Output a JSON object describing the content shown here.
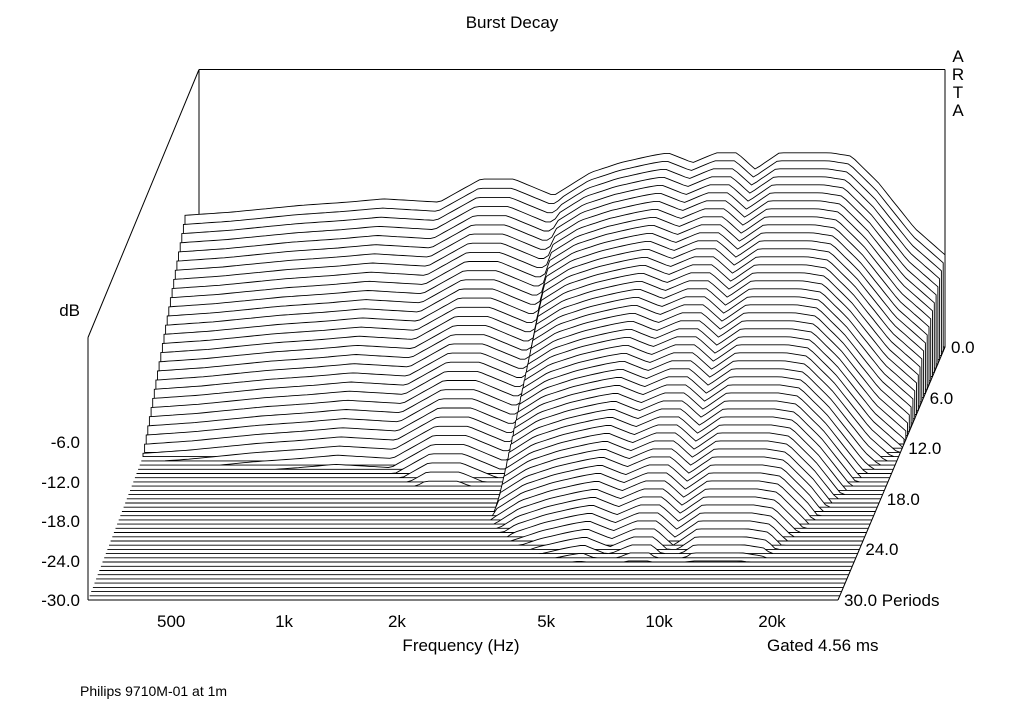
{
  "chart_data": {
    "type": "waterfall",
    "title": "Burst Decay",
    "xlabel": "Frequency (Hz)",
    "ylabel": "dB",
    "zlabel": "Periods",
    "gated_label": "Gated 4.56 ms",
    "footnote": "Philips 9710M-01 at 1m",
    "watermark": "ARTA",
    "x_scale": "log",
    "xlim": [
      300,
      30000
    ],
    "ylim": [
      -30,
      0
    ],
    "zlim": [
      0,
      30
    ],
    "x_ticks": [
      {
        "value": 500,
        "label": "500"
      },
      {
        "value": 1000,
        "label": "1k"
      },
      {
        "value": 2000,
        "label": "2k"
      },
      {
        "value": 5000,
        "label": "5k"
      },
      {
        "value": 10000,
        "label": "10k"
      },
      {
        "value": 20000,
        "label": "20k"
      }
    ],
    "y_ticks": [
      {
        "value": -6,
        "label": "-6.0"
      },
      {
        "value": -12,
        "label": "-12.0"
      },
      {
        "value": -18,
        "label": "-18.0"
      },
      {
        "value": -24,
        "label": "-24.0"
      },
      {
        "value": -30,
        "label": "-30.0"
      }
    ],
    "z_ticks": [
      {
        "value": 0,
        "label": "0.0"
      },
      {
        "value": 6,
        "label": "6.0"
      },
      {
        "value": 12,
        "label": "12.0"
      },
      {
        "value": 18,
        "label": "18.0"
      },
      {
        "value": 24,
        "label": "24.0"
      },
      {
        "value": 30,
        "label": "30.0 Periods"
      }
    ],
    "front_slice_freq_hz": [
      300,
      400,
      600,
      800,
      1000,
      1400,
      1800,
      2200,
      2800,
      3500,
      4200,
      5000,
      5600,
      6500,
      7500,
      8500,
      9500,
      11000,
      13000,
      15000,
      17000,
      20000,
      25000,
      30000
    ],
    "front_slice_db": [
      -10,
      -9.5,
      -8.5,
      -8,
      -7.5,
      -8,
      -4.5,
      -4.5,
      -7,
      -3.5,
      -2,
      -1,
      -0.5,
      -2,
      -0.5,
      -0.5,
      -3,
      -0.5,
      -0.5,
      -0.5,
      -1,
      -5,
      -12,
      -16
    ]
  }
}
